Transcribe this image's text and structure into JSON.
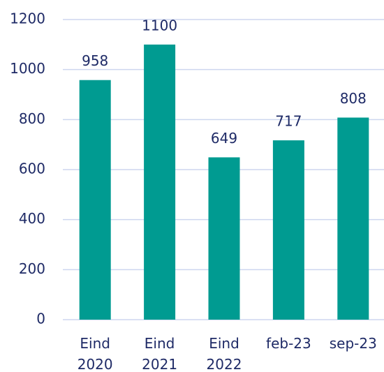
{
  "chart_data": {
    "type": "bar",
    "categories": [
      "Eind 2020",
      "Eind 2021",
      "Eind 2022",
      "feb-23",
      "sep-23"
    ],
    "values": [
      958,
      1100,
      649,
      717,
      808
    ],
    "color": "#009b91",
    "ylim": [
      0,
      1200
    ],
    "yticks": [
      0,
      200,
      400,
      600,
      800,
      1000,
      1200
    ],
    "grid": true
  }
}
